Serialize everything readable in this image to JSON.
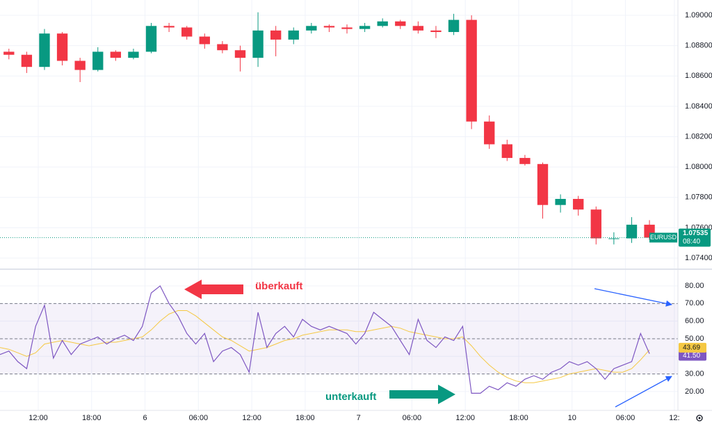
{
  "chart_data": [
    {
      "type": "candlestick",
      "symbol": "EURUSD",
      "last_price": 1.07535,
      "countdown": "08:40",
      "up_color": "#089981",
      "down_color": "#f23645",
      "grid": true,
      "x": [
        1,
        3,
        5,
        7,
        9,
        11,
        13,
        15,
        17,
        19,
        21,
        23,
        25,
        27,
        29,
        31,
        33,
        35,
        37,
        39,
        41,
        43,
        45,
        47,
        49,
        51,
        53,
        55,
        57,
        59,
        61,
        63,
        65,
        67,
        69,
        71,
        73
      ],
      "open": [
        1.0876,
        1.0874,
        1.0866,
        1.0888,
        1.087,
        1.0864,
        1.0876,
        1.0872,
        1.0876,
        1.0893,
        1.0892,
        1.0886,
        1.0881,
        1.0877,
        1.0872,
        1.089,
        1.0884,
        1.089,
        1.0893,
        1.0892,
        1.0891,
        1.0893,
        1.0896,
        1.0893,
        1.089,
        1.0889,
        1.0897,
        1.083,
        1.0815,
        1.0806,
        1.0802,
        1.0775,
        1.0779,
        1.0772,
        1.0753,
        1.0753,
        1.0762
      ],
      "high": [
        1.0878,
        1.0876,
        1.0891,
        1.0889,
        1.0872,
        1.0879,
        1.0877,
        1.0878,
        1.0895,
        1.0895,
        1.0893,
        1.0888,
        1.0883,
        1.088,
        1.0902,
        1.0893,
        1.0892,
        1.0895,
        1.0894,
        1.0894,
        1.0895,
        1.0898,
        1.0897,
        1.0896,
        1.0893,
        1.0901,
        1.09,
        1.0834,
        1.0818,
        1.0808,
        1.0803,
        1.0782,
        1.0781,
        1.0774,
        1.0757,
        1.0767,
        1.0765
      ],
      "low": [
        1.0871,
        1.0862,
        1.0864,
        1.0867,
        1.0856,
        1.0863,
        1.087,
        1.0871,
        1.0875,
        1.0889,
        1.0884,
        1.0878,
        1.0875,
        1.0863,
        1.0866,
        1.0873,
        1.0881,
        1.0888,
        1.0889,
        1.0888,
        1.0889,
        1.0892,
        1.0891,
        1.0888,
        1.0885,
        1.0887,
        1.0825,
        1.0812,
        1.0804,
        1.0801,
        1.0766,
        1.077,
        1.0768,
        1.0749,
        1.0749,
        1.075,
        1.0752
      ],
      "close": [
        1.0874,
        1.0866,
        1.0888,
        1.087,
        1.0864,
        1.0876,
        1.0872,
        1.0876,
        1.0893,
        1.0892,
        1.0886,
        1.0881,
        1.0877,
        1.0872,
        1.089,
        1.0884,
        1.089,
        1.0893,
        1.0892,
        1.0891,
        1.0893,
        1.0896,
        1.0893,
        1.089,
        1.0889,
        1.0897,
        1.083,
        1.0815,
        1.0806,
        1.0802,
        1.0775,
        1.0779,
        1.0772,
        1.0753,
        1.0753,
        1.0762,
        1.07535
      ],
      "xlim": [
        0,
        76.2
      ],
      "ylim": [
        1.07336,
        1.09101
      ],
      "yticks": [
        {
          "value": 1.074,
          "label": "1.07400"
        },
        {
          "value": 1.076,
          "label": "1.07600"
        },
        {
          "value": 1.078,
          "label": "1.07800"
        },
        {
          "value": 1.08,
          "label": "1.08000"
        },
        {
          "value": 1.082,
          "label": "1.08200"
        },
        {
          "value": 1.084,
          "label": "1.08400"
        },
        {
          "value": 1.086,
          "label": "1.08600"
        },
        {
          "value": 1.088,
          "label": "1.08800"
        },
        {
          "value": 1.09,
          "label": "1.09000"
        }
      ]
    },
    {
      "type": "line",
      "grid": true,
      "levels": [
        30,
        50,
        70
      ],
      "band_color": "#7e57c2",
      "x": [
        0,
        1,
        2,
        3,
        4,
        5,
        6,
        7,
        8,
        9,
        10,
        11,
        12,
        13,
        14,
        15,
        16,
        17,
        18,
        19,
        20,
        21,
        22,
        23,
        24,
        25,
        26,
        27,
        28,
        29,
        30,
        31,
        32,
        33,
        34,
        35,
        36,
        37,
        38,
        39,
        40,
        41,
        42,
        43,
        44,
        45,
        46,
        47,
        48,
        49,
        50,
        51,
        52,
        53,
        54,
        55,
        56,
        57,
        58,
        59,
        60,
        61,
        62,
        63,
        64,
        65,
        66,
        67,
        68,
        69,
        70,
        71,
        72,
        73
      ],
      "series": [
        {
          "color": "#7e57c2",
          "last_label": "41.50",
          "values": [
            41,
            43,
            37,
            33,
            57,
            69,
            39,
            49,
            41,
            47,
            49,
            51,
            47,
            50,
            52,
            49,
            57,
            76,
            80,
            70,
            63,
            53,
            47,
            53,
            37,
            43,
            45,
            41,
            31,
            65,
            45,
            53,
            57,
            51,
            61,
            57,
            55,
            57,
            55,
            53,
            47,
            53,
            65,
            61,
            57,
            49,
            41,
            61,
            49,
            45,
            51,
            49,
            57,
            19,
            19,
            23,
            21,
            25,
            23,
            27,
            29,
            27,
            31,
            33,
            37,
            35,
            37,
            33,
            27,
            33,
            35,
            37,
            53,
            41.5
          ]
        },
        {
          "color": "#f5c842",
          "last_label": "43.69",
          "values": [
            45,
            44,
            42,
            40,
            42,
            47,
            48,
            49,
            48,
            47,
            46,
            47,
            48,
            48,
            49,
            50,
            51,
            55,
            60,
            64,
            66,
            66,
            63,
            59,
            55,
            51,
            49,
            46,
            43,
            44,
            45,
            47,
            49,
            50,
            52,
            53,
            54,
            55,
            55,
            55,
            54,
            54,
            55,
            56,
            57,
            56,
            54,
            53,
            52,
            51,
            50,
            50,
            51,
            46,
            40,
            35,
            31,
            28,
            26,
            25,
            25,
            26,
            27,
            28,
            30,
            31,
            32,
            33,
            32,
            31,
            31,
            33,
            38,
            43.69
          ]
        }
      ],
      "annotations": [
        {
          "text": "überkauft",
          "color": "#f23645"
        },
        {
          "text": "unterkauft",
          "color": "#089981"
        }
      ],
      "xlim": [
        0,
        76.2
      ],
      "ylim": [
        9.3,
        88.3
      ],
      "yticks": [
        {
          "value": 20,
          "label": "20.00"
        },
        {
          "value": 30,
          "label": "30.00"
        },
        {
          "value": 40,
          "label": "40.00"
        },
        {
          "value": 50,
          "label": "50.00"
        },
        {
          "value": 60,
          "label": "60.00"
        },
        {
          "value": 70,
          "label": "70.00"
        },
        {
          "value": 80,
          "label": "80.00"
        }
      ],
      "xticks": [
        {
          "value": 4.3,
          "label": "12:00"
        },
        {
          "value": 10.3,
          "label": "18:00"
        },
        {
          "value": 16.3,
          "label": "6"
        },
        {
          "value": 22.3,
          "label": "06:00"
        },
        {
          "value": 28.3,
          "label": "12:00"
        },
        {
          "value": 34.3,
          "label": "18:00"
        },
        {
          "value": 40.3,
          "label": "7"
        },
        {
          "value": 46.3,
          "label": "06:00"
        },
        {
          "value": 52.3,
          "label": "12:00"
        },
        {
          "value": 58.3,
          "label": "18:00"
        },
        {
          "value": 64.3,
          "label": "10"
        },
        {
          "value": 70.3,
          "label": "06:00"
        },
        {
          "value": 75.8,
          "label": "12:"
        }
      ]
    }
  ]
}
